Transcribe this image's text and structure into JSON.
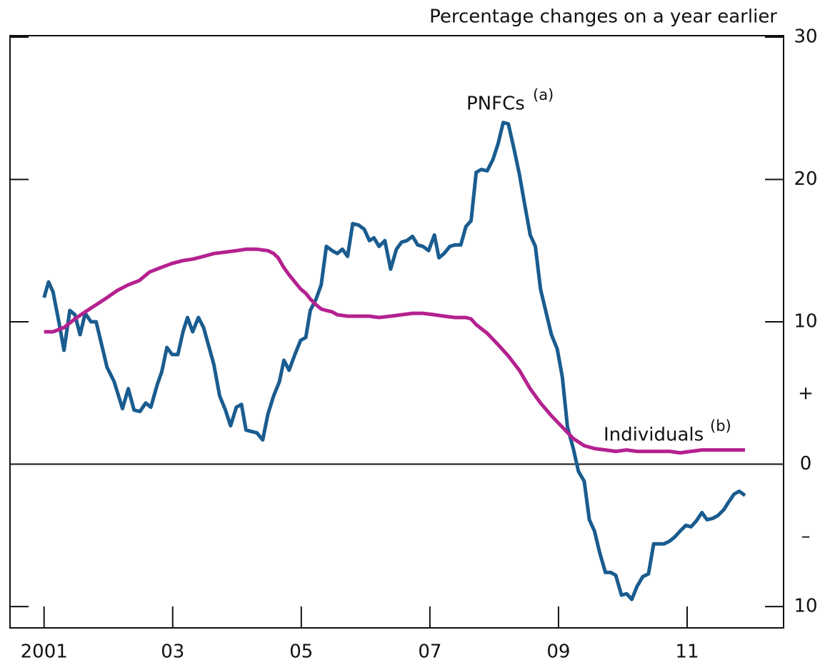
{
  "chart_data": {
    "type": "line",
    "subtitle": "Percentage changes on a year earlier",
    "xlim": [
      2000.47,
      2012.5
    ],
    "xticks": [
      {
        "value": 2001,
        "label": "2001"
      },
      {
        "value": 2003,
        "label": "03"
      },
      {
        "value": 2005,
        "label": "05"
      },
      {
        "value": 2007,
        "label": "07"
      },
      {
        "value": 2009,
        "label": "09"
      },
      {
        "value": 2011,
        "label": "11"
      }
    ],
    "ylim": [
      -11.5,
      30.1
    ],
    "yticks": [
      30,
      20,
      10,
      0,
      {
        "value": -10,
        "label": "10"
      }
    ],
    "sign_labels": [
      "+",
      "–"
    ],
    "series": [
      {
        "name": "PNFCs",
        "note": "(a)",
        "color": "#1a5c8f",
        "x": [
          2001.0,
          2001.07,
          2001.14,
          2001.23,
          2001.31,
          2001.4,
          2001.48,
          2001.56,
          2001.64,
          2001.73,
          2001.81,
          2001.98,
          2002.09,
          2002.22,
          2002.31,
          2002.4,
          2002.49,
          2002.58,
          2002.66,
          2002.76,
          2002.83,
          2002.91,
          2002.99,
          2003.08,
          2003.16,
          2003.23,
          2003.31,
          2003.4,
          2003.48,
          2003.64,
          2003.73,
          2003.82,
          2003.9,
          2003.99,
          2004.07,
          2004.14,
          2004.31,
          2004.4,
          2004.48,
          2004.57,
          2004.66,
          2004.73,
          2004.81,
          2004.9,
          2004.99,
          2005.07,
          2005.14,
          2005.23,
          2005.31,
          2005.39,
          2005.48,
          2005.56,
          2005.64,
          2005.72,
          2005.8,
          2005.89,
          2005.98,
          2006.06,
          2006.13,
          2006.21,
          2006.3,
          2006.39,
          2006.48,
          2006.56,
          2006.64,
          2006.73,
          2006.81,
          2006.89,
          2006.98,
          2007.07,
          2007.14,
          2007.22,
          2007.31,
          2007.39,
          2007.48,
          2007.56,
          2007.64,
          2007.72,
          2007.8,
          2007.89,
          2007.98,
          2008.06,
          2008.14,
          2008.22,
          2008.31,
          2008.39,
          2008.48,
          2008.56,
          2008.64,
          2008.72,
          2008.81,
          2008.89,
          2008.98,
          2009.06,
          2009.14,
          2009.23,
          2009.31,
          2009.4,
          2009.48,
          2009.56,
          2009.64,
          2009.73,
          2009.81,
          2009.89,
          2009.98,
          2010.06,
          2010.14,
          2010.22,
          2010.31,
          2010.4,
          2010.48,
          2010.57,
          2010.64,
          2010.73,
          2010.81,
          2010.89,
          2010.98,
          2011.06,
          2011.14,
          2011.23,
          2011.31,
          2011.4,
          2011.48,
          2011.57,
          2011.64,
          2011.73,
          2011.81,
          2011.9
        ],
        "values": [
          11.7,
          12.8,
          12.1,
          10,
          8,
          10.8,
          10.5,
          9.1,
          10.6,
          10,
          10,
          6.8,
          5.8,
          3.9,
          5.3,
          3.8,
          3.7,
          4.3,
          4,
          5.6,
          6.5,
          8.2,
          7.7,
          7.7,
          9.3,
          10.3,
          9.3,
          10.3,
          9.6,
          7,
          4.8,
          3.8,
          2.7,
          4,
          4.2,
          2.4,
          2.2,
          1.7,
          3.5,
          4.8,
          5.8,
          7.3,
          6.6,
          7.7,
          8.7,
          8.9,
          10.8,
          11.6,
          12.6,
          15.3,
          15,
          14.8,
          15.1,
          14.6,
          16.9,
          16.8,
          16.5,
          15.7,
          15.9,
          15.3,
          15.7,
          13.7,
          15.1,
          15.6,
          15.7,
          16,
          15.4,
          15.3,
          15,
          16.1,
          14.5,
          14.8,
          15.3,
          15.4,
          15.4,
          16.7,
          17.1,
          20.5,
          20.7,
          20.6,
          21.4,
          22.5,
          24,
          23.9,
          22.1,
          20.4,
          18.1,
          16.1,
          15.3,
          12.3,
          10.6,
          9.1,
          8.1,
          6.1,
          2.6,
          1.1,
          -0.5,
          -1.2,
          -3.9,
          -4.7,
          -6.2,
          -7.6,
          -7.6,
          -7.8,
          -9.2,
          -9.1,
          -9.5,
          -8.6,
          -7.9,
          -7.7,
          -5.6,
          -5.6,
          -5.6,
          -5.4,
          -5.1,
          -4.7,
          -4.3,
          -4.4,
          -4,
          -3.4,
          -3.9,
          -3.8,
          -3.6,
          -3.2,
          -2.7,
          -2.1,
          -1.9,
          -2.2
        ]
      },
      {
        "name": "Individuals",
        "note": "(b)",
        "color": "#b4218f",
        "x": [
          2001.0,
          2001.14,
          2001.31,
          2001.48,
          2001.64,
          2001.81,
          2001.98,
          2002.14,
          2002.31,
          2002.48,
          2002.64,
          2002.81,
          2002.99,
          2003.16,
          2003.31,
          2003.48,
          2003.64,
          2003.82,
          2003.99,
          2004.14,
          2004.31,
          2004.48,
          2004.57,
          2004.64,
          2004.73,
          2004.81,
          2004.9,
          2004.99,
          2005.07,
          2005.14,
          2005.23,
          2005.31,
          2005.39,
          2005.48,
          2005.56,
          2005.72,
          2005.89,
          2006.06,
          2006.21,
          2006.39,
          2006.56,
          2006.73,
          2006.89,
          2007.07,
          2007.22,
          2007.39,
          2007.56,
          2007.64,
          2007.72,
          2007.89,
          2008.06,
          2008.22,
          2008.39,
          2008.56,
          2008.72,
          2008.89,
          2009.06,
          2009.23,
          2009.4,
          2009.56,
          2009.73,
          2009.89,
          2010.06,
          2010.22,
          2010.4,
          2010.57,
          2010.73,
          2010.89,
          2011.06,
          2011.23,
          2011.4,
          2011.57,
          2011.73,
          2011.9
        ],
        "values": [
          9.3,
          9.3,
          9.6,
          10.2,
          10.7,
          11.2,
          11.7,
          12.2,
          12.6,
          12.9,
          13.5,
          13.8,
          14.1,
          14.3,
          14.4,
          14.6,
          14.8,
          14.9,
          15,
          15.1,
          15.1,
          15,
          14.8,
          14.5,
          13.8,
          13.3,
          12.8,
          12.3,
          12,
          11.6,
          11.2,
          10.9,
          10.8,
          10.7,
          10.5,
          10.4,
          10.4,
          10.4,
          10.3,
          10.4,
          10.5,
          10.6,
          10.6,
          10.5,
          10.4,
          10.3,
          10.3,
          10.2,
          9.8,
          9.2,
          8.4,
          7.6,
          6.6,
          5.3,
          4.3,
          3.4,
          2.6,
          1.8,
          1.3,
          1.1,
          1,
          0.9,
          1,
          0.9,
          0.9,
          0.9,
          0.9,
          0.8,
          0.9,
          1,
          1,
          1,
          1,
          1
        ]
      }
    ]
  }
}
